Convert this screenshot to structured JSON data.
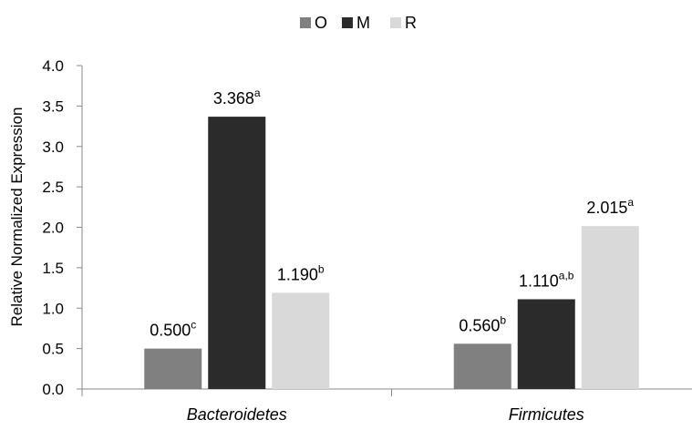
{
  "chart_data": {
    "type": "bar",
    "categories": [
      "Bacteroidetes",
      "Firmicutes"
    ],
    "series": [
      {
        "name": "O",
        "color": "#808080",
        "values": [
          0.5,
          0.56
        ],
        "labels": [
          "0.500",
          "0.560"
        ],
        "superscripts": [
          "c",
          "b"
        ]
      },
      {
        "name": "M",
        "color": "#2b2b2b",
        "values": [
          3.368,
          1.11
        ],
        "labels": [
          "3.368",
          "1.110"
        ],
        "superscripts": [
          "a",
          "a,b"
        ]
      },
      {
        "name": "R",
        "color": "#d9d9d9",
        "values": [
          1.19,
          2.015
        ],
        "labels": [
          "1.190",
          "2.015"
        ],
        "superscripts": [
          "b",
          "a"
        ]
      }
    ],
    "title": "",
    "xlabel": "",
    "ylabel": "Relative Normalized Expression",
    "ylim": [
      0,
      4
    ],
    "yticks": [
      "0.0",
      "0.5",
      "1.0",
      "1.5",
      "2.0",
      "2.5",
      "3.0",
      "3.5",
      "4.0"
    ],
    "grid": false,
    "legend_position": "top"
  }
}
